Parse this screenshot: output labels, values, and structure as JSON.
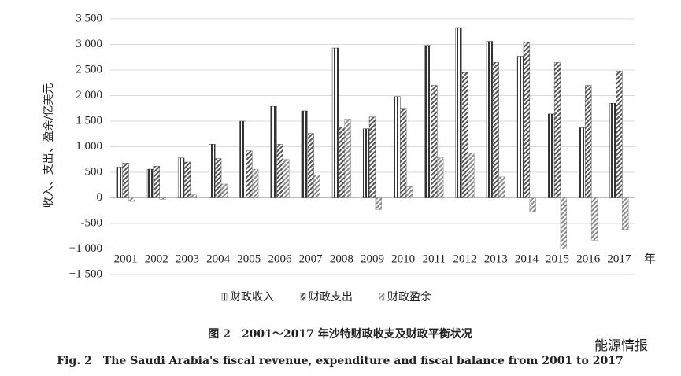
{
  "chart_data": {
    "type": "bar",
    "y_label": "收入、支出、盈余/亿美元",
    "x_unit": "年",
    "caption_cn": "图 2　2001～2017 年沙特财政收支及财政平衡状况",
    "caption_en": "Fig. 2　The Saudi Arabia's fiscal revenue, expenditure and fiscal balance from 2001 to 2017",
    "watermark": "能源情报",
    "categories": [
      "2001",
      "2002",
      "2003",
      "2004",
      "2005",
      "2006",
      "2007",
      "2008",
      "2009",
      "2010",
      "2011",
      "2012",
      "2013",
      "2014",
      "2015",
      "2016",
      "2017"
    ],
    "series": [
      {
        "name": "财政收入",
        "color": "#333333",
        "values": [
          600,
          560,
          780,
          1050,
          1500,
          1790,
          1700,
          2930,
          1350,
          1980,
          2980,
          3330,
          3060,
          2770,
          1640,
          1370,
          1850
        ]
      },
      {
        "name": "财政支出",
        "color": "#555555",
        "values": [
          680,
          620,
          700,
          770,
          920,
          1050,
          1260,
          1380,
          1580,
          1750,
          2200,
          2450,
          2650,
          3040,
          2650,
          2200,
          2480
        ]
      },
      {
        "name": "财政盈余",
        "color": "#8a8a8a",
        "values": [
          -70,
          -30,
          60,
          270,
          560,
          750,
          450,
          1540,
          -230,
          220,
          780,
          880,
          410,
          -270,
          -1000,
          -830,
          -620
        ]
      }
    ],
    "ylim": [
      -1500,
      3500
    ],
    "yticks": [
      {
        "value": -1500,
        "label": "−1 500"
      },
      {
        "value": -1000,
        "label": "−1 000"
      },
      -500,
      0,
      500,
      {
        "value": 1000,
        "label": "1 000"
      },
      {
        "value": 1500,
        "label": "1 500"
      },
      {
        "value": 2000,
        "label": "2 000"
      },
      {
        "value": 2500,
        "label": "2 500"
      },
      {
        "value": 3000,
        "label": "3 000"
      },
      {
        "value": 3500,
        "label": "3 500"
      }
    ],
    "grid": true,
    "legend": "bottom"
  }
}
